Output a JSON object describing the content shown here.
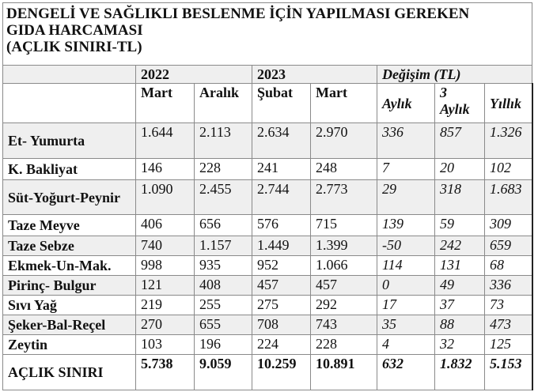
{
  "title_lines": [
    "DENGELİ VE SAĞLIKLI BESLENME İÇİN YAPILMASI GEREKEN",
    "GIDA HARCAMASI",
    "(AÇLIK SINIRI-TL)"
  ],
  "header": {
    "year_2022": "2022",
    "year_2023": "2023",
    "change": "Değişim (TL)",
    "cols": [
      "Mart",
      "Aralık",
      "Şubat",
      "Mart",
      "Aylık",
      "3 Aylık",
      "Yıllık"
    ]
  },
  "rows": [
    {
      "label": "Et- Yumurta",
      "values": [
        "1.644",
        "2.113",
        "2.634",
        "2.970",
        "336",
        "857",
        "1.326"
      ]
    },
    {
      "label": "K. Bakliyat",
      "values": [
        "146",
        "228",
        "241",
        "248",
        "7",
        "20",
        "102"
      ]
    },
    {
      "label": "Süt-Yoğurt-Peynir",
      "values": [
        "1.090",
        "2.455",
        "2.744",
        "2.773",
        "29",
        "318",
        "1.683"
      ]
    },
    {
      "label": "Taze Meyve",
      "values": [
        "406",
        "656",
        "576",
        "715",
        "139",
        "59",
        "309"
      ]
    },
    {
      "label": "Taze Sebze",
      "values": [
        "740",
        "1.157",
        "1.449",
        "1.399",
        "-50",
        "242",
        "659"
      ]
    },
    {
      "label": "Ekmek-Un-Mak.",
      "values": [
        "998",
        "935",
        "952",
        "1.066",
        "114",
        "131",
        "68"
      ]
    },
    {
      "label": "Pirinç- Bulgur",
      "values": [
        "121",
        "408",
        "457",
        "457",
        "0",
        "49",
        "336"
      ]
    },
    {
      "label": "Sıvı Yağ",
      "values": [
        "219",
        "255",
        "275",
        "292",
        "17",
        "37",
        "73"
      ]
    },
    {
      "label": "Şeker-Bal-Reçel",
      "values": [
        "270",
        "655",
        "708",
        "743",
        "35",
        "88",
        "473"
      ]
    },
    {
      "label": "Zeytin",
      "values": [
        "103",
        "196",
        "224",
        "228",
        "4",
        "32",
        "125"
      ]
    },
    {
      "label": "AÇLIK SINIRI",
      "values": [
        "5.738",
        "9.059",
        "10.259",
        "10.891",
        "632",
        "1.832",
        "5.153"
      ]
    }
  ]
}
